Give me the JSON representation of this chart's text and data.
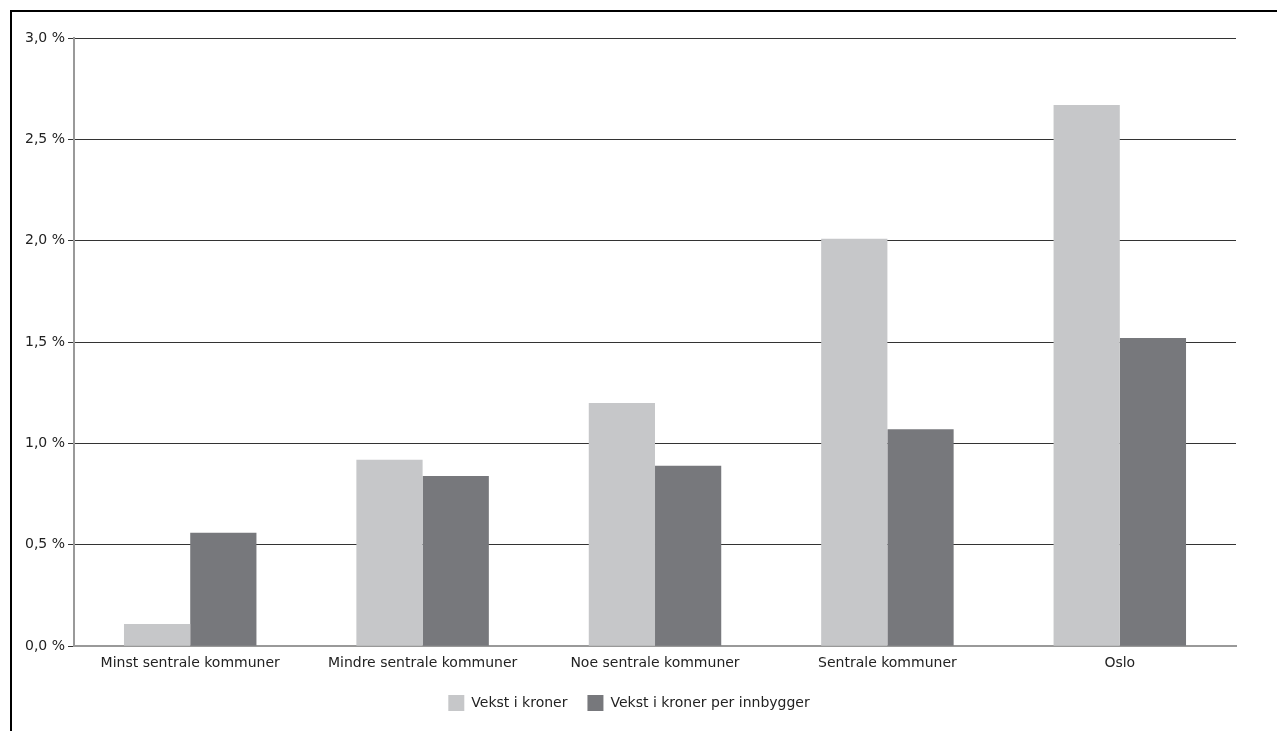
{
  "chart_data": {
    "type": "bar",
    "categories": [
      "Minst sentrale kommuner",
      "Mindre sentrale kommuner",
      "Noe sentrale kommuner",
      "Sentrale kommuner",
      "Oslo"
    ],
    "series": [
      {
        "name": "Vekst i kroner",
        "color": "#c6c7c9",
        "values": [
          0.11,
          0.92,
          1.2,
          2.01,
          2.67
        ]
      },
      {
        "name": "Vekst i kroner per innbygger",
        "color": "#77787c",
        "values": [
          0.56,
          0.84,
          0.89,
          1.07,
          1.52
        ]
      }
    ],
    "ylim": [
      0,
      3
    ],
    "yticks": [
      {
        "value": 0,
        "label": "0,0 %"
      },
      {
        "value": 0.5,
        "label": "0,5 %"
      },
      {
        "value": 1,
        "label": "1,0 %"
      },
      {
        "value": 1.5,
        "label": "1,5 %"
      },
      {
        "value": 2,
        "label": "2,0 %"
      },
      {
        "value": 2.5,
        "label": "2,5 %"
      },
      {
        "value": 3,
        "label": "3,0 %"
      }
    ],
    "grid": "y",
    "legend": "bottom"
  }
}
